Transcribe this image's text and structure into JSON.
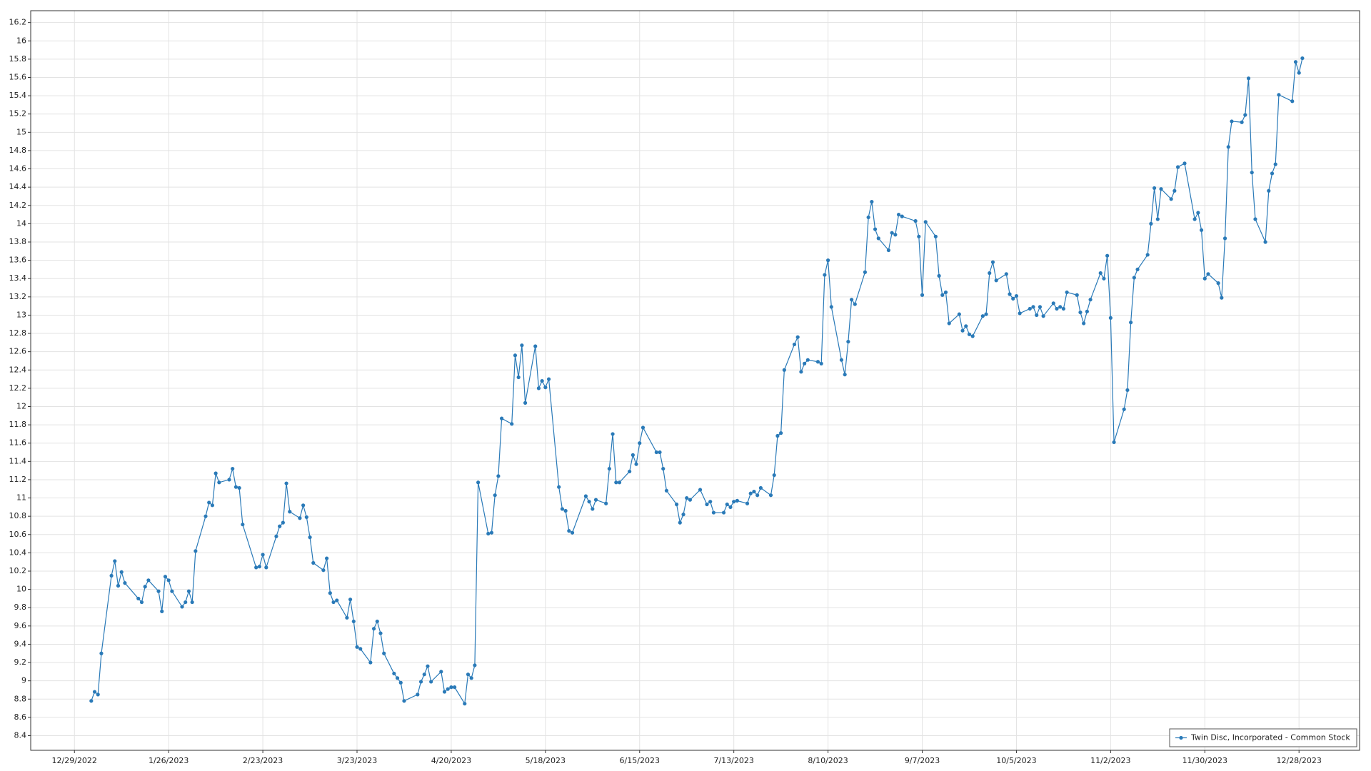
{
  "chart_data": {
    "type": "line",
    "x": [
      "1/3/2023",
      "1/4/2023",
      "1/5/2023",
      "1/6/2023",
      "1/9/2023",
      "1/10/2023",
      "1/11/2023",
      "1/12/2023",
      "1/13/2023",
      "1/17/2023",
      "1/18/2023",
      "1/19/2023",
      "1/20/2023",
      "1/23/2023",
      "1/24/2023",
      "1/25/2023",
      "1/26/2023",
      "1/27/2023",
      "1/30/2023",
      "1/31/2023",
      "2/1/2023",
      "2/2/2023",
      "2/3/2023",
      "2/6/2023",
      "2/7/2023",
      "2/8/2023",
      "2/9/2023",
      "2/10/2023",
      "2/13/2023",
      "2/14/2023",
      "2/15/2023",
      "2/16/2023",
      "2/17/2023",
      "2/21/2023",
      "2/22/2023",
      "2/23/2023",
      "2/24/2023",
      "2/27/2023",
      "2/28/2023",
      "3/1/2023",
      "3/2/2023",
      "3/3/2023",
      "3/6/2023",
      "3/7/2023",
      "3/8/2023",
      "3/9/2023",
      "3/10/2023",
      "3/13/2023",
      "3/14/2023",
      "3/15/2023",
      "3/16/2023",
      "3/17/2023",
      "3/20/2023",
      "3/21/2023",
      "3/22/2023",
      "3/23/2023",
      "3/24/2023",
      "3/27/2023",
      "3/28/2023",
      "3/29/2023",
      "3/30/2023",
      "3/31/2023",
      "4/3/2023",
      "4/4/2023",
      "4/5/2023",
      "4/6/2023",
      "4/10/2023",
      "4/11/2023",
      "4/12/2023",
      "4/13/2023",
      "4/14/2023",
      "4/17/2023",
      "4/18/2023",
      "4/19/2023",
      "4/20/2023",
      "4/21/2023",
      "4/24/2023",
      "4/25/2023",
      "4/26/2023",
      "4/27/2023",
      "4/28/2023",
      "5/1/2023",
      "5/2/2023",
      "5/3/2023",
      "5/4/2023",
      "5/5/2023",
      "5/8/2023",
      "5/9/2023",
      "5/10/2023",
      "5/11/2023",
      "5/12/2023",
      "5/15/2023",
      "5/16/2023",
      "5/17/2023",
      "5/18/2023",
      "5/19/2023",
      "5/22/2023",
      "5/23/2023",
      "5/24/2023",
      "5/25/2023",
      "5/26/2023",
      "5/30/2023",
      "5/31/2023",
      "6/1/2023",
      "6/2/2023",
      "6/5/2023",
      "6/6/2023",
      "6/7/2023",
      "6/8/2023",
      "6/9/2023",
      "6/12/2023",
      "6/13/2023",
      "6/14/2023",
      "6/15/2023",
      "6/16/2023",
      "6/20/2023",
      "6/21/2023",
      "6/22/2023",
      "6/23/2023",
      "6/26/2023",
      "6/27/2023",
      "6/28/2023",
      "6/29/2023",
      "6/30/2023",
      "7/3/2023",
      "7/5/2023",
      "7/6/2023",
      "7/7/2023",
      "7/10/2023",
      "7/11/2023",
      "7/12/2023",
      "7/13/2023",
      "7/14/2023",
      "7/17/2023",
      "7/18/2023",
      "7/19/2023",
      "7/20/2023",
      "7/21/2023",
      "7/24/2023",
      "7/25/2023",
      "7/26/2023",
      "7/27/2023",
      "7/28/2023",
      "7/31/2023",
      "8/1/2023",
      "8/2/2023",
      "8/3/2023",
      "8/4/2023",
      "8/7/2023",
      "8/8/2023",
      "8/9/2023",
      "8/10/2023",
      "8/11/2023",
      "8/14/2023",
      "8/15/2023",
      "8/16/2023",
      "8/17/2023",
      "8/18/2023",
      "8/21/2023",
      "8/22/2023",
      "8/23/2023",
      "8/24/2023",
      "8/25/2023",
      "8/28/2023",
      "8/29/2023",
      "8/30/2023",
      "8/31/2023",
      "9/1/2023",
      "9/5/2023",
      "9/6/2023",
      "9/7/2023",
      "9/8/2023",
      "9/11/2023",
      "9/12/2023",
      "9/13/2023",
      "9/14/2023",
      "9/15/2023",
      "9/18/2023",
      "9/19/2023",
      "9/20/2023",
      "9/21/2023",
      "9/22/2023",
      "9/25/2023",
      "9/26/2023",
      "9/27/2023",
      "9/28/2023",
      "9/29/2023",
      "10/2/2023",
      "10/3/2023",
      "10/4/2023",
      "10/5/2023",
      "10/6/2023",
      "10/9/2023",
      "10/10/2023",
      "10/11/2023",
      "10/12/2023",
      "10/13/2023",
      "10/16/2023",
      "10/17/2023",
      "10/18/2023",
      "10/19/2023",
      "10/20/2023",
      "10/23/2023",
      "10/24/2023",
      "10/25/2023",
      "10/26/2023",
      "10/27/2023",
      "10/30/2023",
      "10/31/2023",
      "11/1/2023",
      "11/2/2023",
      "11/3/2023",
      "11/6/2023",
      "11/7/2023",
      "11/8/2023",
      "11/9/2023",
      "11/10/2023",
      "11/13/2023",
      "11/14/2023",
      "11/15/2023",
      "11/16/2023",
      "11/17/2023",
      "11/20/2023",
      "11/21/2023",
      "11/22/2023",
      "11/24/2023",
      "11/27/2023",
      "11/28/2023",
      "11/29/2023",
      "11/30/2023",
      "12/1/2023",
      "12/4/2023",
      "12/5/2023",
      "12/6/2023",
      "12/7/2023",
      "12/8/2023",
      "12/11/2023",
      "12/12/2023",
      "12/13/2023",
      "12/14/2023",
      "12/15/2023",
      "12/18/2023",
      "12/19/2023",
      "12/20/2023",
      "12/21/2023",
      "12/22/2023",
      "12/26/2023",
      "12/27/2023",
      "12/28/2023",
      "12/29/2023"
    ],
    "series": [
      {
        "name": "Twin Disc, Incorporated - Common Stock",
        "color": "#2a7ab8",
        "values": [
          8.78,
          8.88,
          8.85,
          9.3,
          10.15,
          10.31,
          10.04,
          10.19,
          10.07,
          9.9,
          9.86,
          10.03,
          10.1,
          9.98,
          9.76,
          10.14,
          10.1,
          9.98,
          9.81,
          9.86,
          9.98,
          9.86,
          10.42,
          10.8,
          10.95,
          10.92,
          11.27,
          11.17,
          11.2,
          11.32,
          11.12,
          11.11,
          10.71,
          10.24,
          10.25,
          10.38,
          10.24,
          10.58,
          10.69,
          10.73,
          11.16,
          10.85,
          10.78,
          10.92,
          10.79,
          10.57,
          10.29,
          10.21,
          10.34,
          9.96,
          9.86,
          9.88,
          9.69,
          9.89,
          9.65,
          9.37,
          9.35,
          9.2,
          9.57,
          9.65,
          9.52,
          9.3,
          9.08,
          9.03,
          8.98,
          8.78,
          8.85,
          8.99,
          9.07,
          9.16,
          8.99,
          9.1,
          8.88,
          8.91,
          8.93,
          8.93,
          8.75,
          9.07,
          9.03,
          9.17,
          11.17,
          10.61,
          10.62,
          11.03,
          11.24,
          11.87,
          11.81,
          12.56,
          12.32,
          12.67,
          12.04,
          12.66,
          12.2,
          12.28,
          12.21,
          12.3,
          11.12,
          10.88,
          10.86,
          10.64,
          10.62,
          11.02,
          10.96,
          10.88,
          10.98,
          10.94,
          11.32,
          11.7,
          11.17,
          11.17,
          11.29,
          11.47,
          11.37,
          11.6,
          11.77,
          11.5,
          11.5,
          11.32,
          11.08,
          10.93,
          10.73,
          10.82,
          11.0,
          10.98,
          11.09,
          10.93,
          10.96,
          10.84,
          10.84,
          10.93,
          10.9,
          10.96,
          10.97,
          10.94,
          11.05,
          11.07,
          11.03,
          11.11,
          11.03,
          11.25,
          11.68,
          11.71,
          12.4,
          12.68,
          12.76,
          12.38,
          12.47,
          12.51,
          12.49,
          12.47,
          13.44,
          13.6,
          13.09,
          12.51,
          12.35,
          12.71,
          13.17,
          13.12,
          13.47,
          14.07,
          14.24,
          13.94,
          13.84,
          13.71,
          13.9,
          13.88,
          14.1,
          14.08,
          14.03,
          13.86,
          13.22,
          14.02,
          13.86,
          13.43,
          13.22,
          13.25,
          12.91,
          13.01,
          12.83,
          12.88,
          12.79,
          12.77,
          12.99,
          13.01,
          13.46,
          13.58,
          13.38,
          13.45,
          13.23,
          13.18,
          13.21,
          13.02,
          13.07,
          13.09,
          13.0,
          13.09,
          12.99,
          13.13,
          13.07,
          13.09,
          13.07,
          13.25,
          13.22,
          13.03,
          12.91,
          13.04,
          13.17,
          13.46,
          13.4,
          13.65,
          12.97,
          11.61,
          11.97,
          12.18,
          12.92,
          13.41,
          13.5,
          13.66,
          14.0,
          14.39,
          14.05,
          14.38,
          14.27,
          14.36,
          14.62,
          14.66,
          14.05,
          14.12,
          13.93,
          13.4,
          13.45,
          13.35,
          13.19,
          13.84,
          14.84,
          15.12,
          15.11,
          15.19,
          15.59,
          14.56,
          14.05,
          13.8,
          14.36,
          14.55,
          14.65,
          15.41,
          15.34,
          15.77,
          15.65,
          15.81
        ]
      }
    ],
    "xlim": [
      "12/16/2022",
      "1/15/2024"
    ],
    "xticks": [
      "12/29/2022",
      "1/26/2023",
      "2/23/2023",
      "3/23/2023",
      "4/20/2023",
      "5/18/2023",
      "6/15/2023",
      "7/13/2023",
      "8/10/2023",
      "9/7/2023",
      "10/5/2023",
      "11/2/2023",
      "11/30/2023",
      "12/28/2023"
    ],
    "ylim": [
      8.24,
      16.33
    ],
    "yticks": [
      8.4,
      8.6,
      8.8,
      9,
      9.2,
      9.4,
      9.6,
      9.8,
      10,
      10.2,
      10.4,
      10.6,
      10.8,
      11,
      11.2,
      11.4,
      11.6,
      11.8,
      12,
      12.2,
      12.4,
      12.6,
      12.8,
      13,
      13.2,
      13.4,
      13.6,
      13.8,
      14,
      14.2,
      14.4,
      14.6,
      14.8,
      15,
      15.2,
      15.4,
      15.6,
      15.8,
      16,
      16.2
    ],
    "grid": true,
    "legend": "lower right"
  }
}
